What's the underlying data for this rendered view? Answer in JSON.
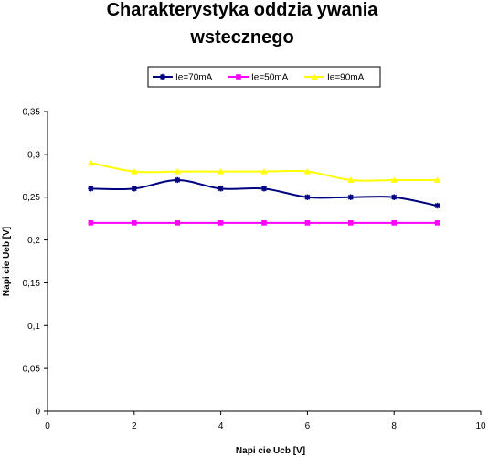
{
  "chart_data": {
    "type": "line",
    "title_line1": "Charakterystyka oddzia ywania",
    "title_line2": "wstecznego",
    "xlabel": "Napi  cie Ucb [V]",
    "ylabel": "Napi  cie Ueb [V]",
    "xlim": [
      0,
      10
    ],
    "ylim": [
      0,
      0.35
    ],
    "x_ticks": [
      0,
      2,
      4,
      6,
      8,
      10
    ],
    "x_tick_labels": [
      "0",
      "2",
      "4",
      "6",
      "8",
      "10"
    ],
    "y_ticks": [
      0,
      0.05,
      0.1,
      0.15,
      0.2,
      0.25,
      0.3,
      0.35
    ],
    "y_tick_labels": [
      "0",
      "0,05",
      "0,1",
      "0,15",
      "0,2",
      "0,25",
      "0,3",
      "0,35"
    ],
    "grid": false,
    "legend_position": "top",
    "x": [
      1,
      2,
      3,
      4,
      5,
      6,
      7,
      8,
      9
    ],
    "series": [
      {
        "name": "Ie=70mA",
        "color": "#000080",
        "marker": "star",
        "values": [
          0.26,
          0.26,
          0.27,
          0.26,
          0.26,
          0.25,
          0.25,
          0.25,
          0.24
        ]
      },
      {
        "name": "Ie=50mA",
        "color": "#ff00ff",
        "marker": "square",
        "values": [
          0.22,
          0.22,
          0.22,
          0.22,
          0.22,
          0.22,
          0.22,
          0.22,
          0.22
        ]
      },
      {
        "name": "Ie=90mA",
        "color": "#ffff00",
        "marker": "triangle",
        "values": [
          0.29,
          0.28,
          0.28,
          0.28,
          0.28,
          0.28,
          0.27,
          0.27,
          0.27
        ]
      }
    ]
  }
}
